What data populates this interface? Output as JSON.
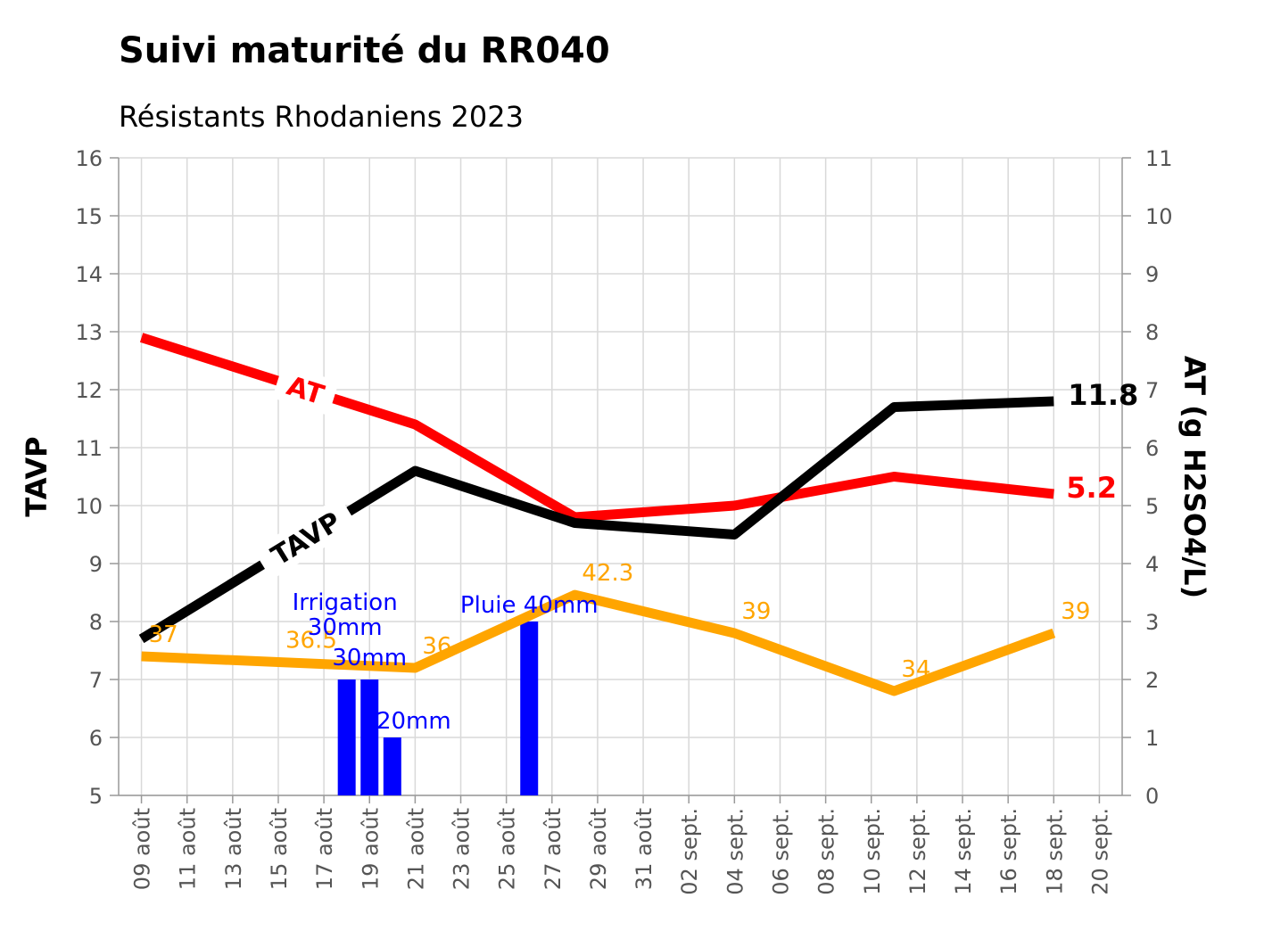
{
  "title": "Suivi maturité du RR040",
  "subtitle": "Résistants Rhodaniens 2023",
  "chart_data": {
    "type": "line",
    "x_axis": {
      "type": "date",
      "range": [
        "2023-08-08",
        "2023-09-21"
      ],
      "tick_labels": [
        "09 août",
        "11 août",
        "13 août",
        "15 août",
        "17 août",
        "19 août",
        "21 août",
        "23 août",
        "25 août",
        "27 août",
        "29 août",
        "31 août",
        "02 sept.",
        "04 sept.",
        "06 sept.",
        "08 sept.",
        "10 sept.",
        "12 sept.",
        "14 sept.",
        "16 sept.",
        "18 sept.",
        "20 sept."
      ],
      "grid": true
    },
    "y_left": {
      "label": "TAVP",
      "range": [
        5,
        16
      ],
      "ticks": [
        "5",
        "6",
        "7",
        "8",
        "9",
        "10",
        "11",
        "12",
        "13",
        "14",
        "15",
        "16"
      ]
    },
    "y_right": {
      "label": "AT (g H2SO4/L)",
      "range": [
        0,
        11
      ],
      "ticks": [
        "0",
        "1",
        "2",
        "3",
        "4",
        "5",
        "6",
        "7",
        "8",
        "9",
        "10",
        "11"
      ]
    },
    "series": [
      {
        "name": "TAVP",
        "axis": "left",
        "color": "#000000",
        "points": [
          [
            "2023-08-09",
            7.7
          ],
          [
            "2023-08-21",
            10.6
          ],
          [
            "2023-08-28",
            9.7
          ],
          [
            "2023-09-04",
            9.5
          ],
          [
            "2023-09-11",
            11.7
          ],
          [
            "2023-09-18",
            11.8
          ]
        ],
        "end_label": "11.8"
      },
      {
        "name": "AT",
        "axis": "right",
        "color": "#ff0000",
        "points": [
          [
            "2023-08-09",
            7.9
          ],
          [
            "2023-08-21",
            6.4
          ],
          [
            "2023-08-28",
            4.8
          ],
          [
            "2023-09-04",
            5.0
          ],
          [
            "2023-09-11",
            5.5
          ],
          [
            "2023-09-18",
            5.2
          ]
        ],
        "end_label": "5.2"
      },
      {
        "axis": "left",
        "scale": "tavp_x_5",
        "color": "#ffa500",
        "points": [
          [
            "2023-08-09",
            37
          ],
          [
            "2023-08-15",
            36.5
          ],
          [
            "2023-08-21",
            36
          ],
          [
            "2023-08-28",
            42.3
          ],
          [
            "2023-09-04",
            39
          ],
          [
            "2023-09-11",
            34
          ],
          [
            "2023-09-18",
            39
          ]
        ],
        "labels": [
          "37",
          "36.5",
          "36",
          "42.3",
          "39",
          "34",
          "39"
        ]
      }
    ],
    "bars": {
      "axis": "right",
      "color": "#0000ff",
      "items": [
        {
          "date": "2023-08-18",
          "value": 2,
          "label": "Irrigation\n30mm"
        },
        {
          "date": "2023-08-19",
          "value": 2,
          "label": "30mm"
        },
        {
          "date": "2023-08-20",
          "value": 1,
          "label": "20mm"
        },
        {
          "date": "2023-08-26",
          "value": 3,
          "label": "Pluie 40mm"
        }
      ]
    }
  }
}
